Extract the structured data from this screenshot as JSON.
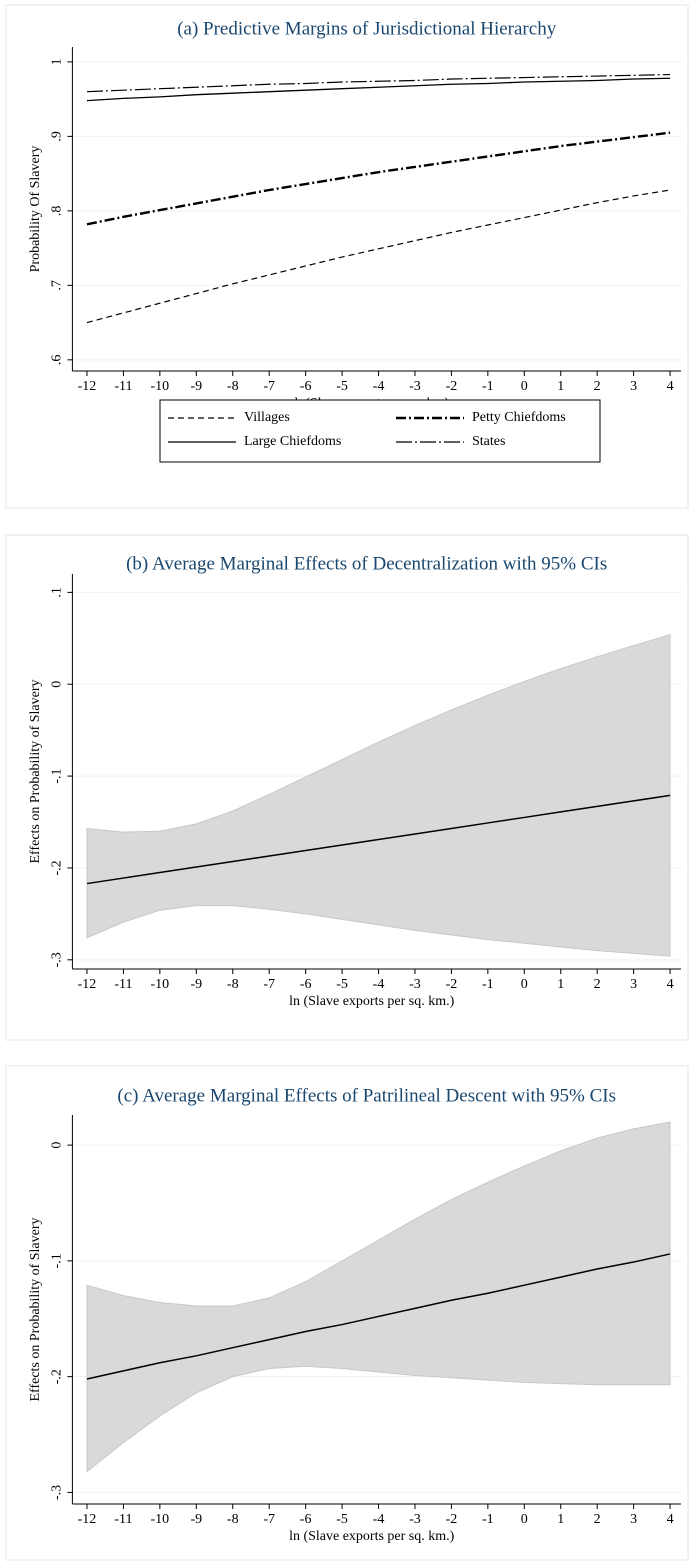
{
  "chart_data": [
    {
      "type": "line",
      "title": "(a) Predictive Margins of Jurisdictional Hierarchy",
      "x_label": "ln(Slave exports per sq km)",
      "y_label": "Probability Of Slavery",
      "x": [
        -12,
        -11,
        -10,
        -9,
        -8,
        -7,
        -6,
        -5,
        -4,
        -3,
        -2,
        -1,
        0,
        1,
        2,
        3,
        4
      ],
      "series": [
        {
          "name": "Villages",
          "color": "#000000",
          "style": "dashed",
          "values": [
            0.65,
            0.663,
            0.676,
            0.689,
            0.702,
            0.714,
            0.726,
            0.738,
            0.749,
            0.76,
            0.771,
            0.781,
            0.791,
            0.801,
            0.811,
            0.82,
            0.828
          ]
        },
        {
          "name": "Petty Chiefdoms",
          "color": "#000000",
          "style": "dashdot",
          "values": [
            0.782,
            0.792,
            0.801,
            0.81,
            0.819,
            0.828,
            0.836,
            0.844,
            0.852,
            0.859,
            0.866,
            0.873,
            0.88,
            0.887,
            0.893,
            0.899,
            0.905
          ]
        },
        {
          "name": "Large Chiefdoms",
          "color": "#000000",
          "style": "solid",
          "values": [
            0.948,
            0.951,
            0.953,
            0.956,
            0.958,
            0.96,
            0.962,
            0.964,
            0.966,
            0.968,
            0.97,
            0.971,
            0.973,
            0.974,
            0.975,
            0.977,
            0.978
          ]
        },
        {
          "name": "States",
          "color": "#000000",
          "style": "longdashdot",
          "values": [
            0.96,
            0.962,
            0.964,
            0.966,
            0.968,
            0.97,
            0.971,
            0.973,
            0.974,
            0.975,
            0.977,
            0.978,
            0.979,
            0.98,
            0.981,
            0.982,
            0.983
          ]
        }
      ],
      "xlim": [
        -12.4,
        4.3
      ],
      "xticks": [
        -12,
        -11,
        -10,
        -9,
        -8,
        -7,
        -6,
        -5,
        -4,
        -3,
        -2,
        -1,
        0,
        1,
        2,
        3,
        4
      ],
      "ylim": [
        0.585,
        1.02
      ],
      "yticks": [
        {
          "value": 0.6,
          "label": ".6"
        },
        {
          "value": 0.7,
          "label": ".7"
        },
        {
          "value": 0.8,
          "label": ".8"
        },
        {
          "value": 0.9,
          "label": ".9"
        },
        1
      ],
      "grid": true,
      "legend": "bottom"
    },
    {
      "type": "band",
      "title": "(b) Average Marginal Effects of Decentralization with 95% CIs",
      "x_label": "ln (Slave exports per sq. km.)",
      "y_label": "Effects on Probability of Slavery",
      "x": [
        -12,
        -11,
        -10,
        -9,
        -8,
        -7,
        -6,
        -5,
        -4,
        -3,
        -2,
        -1,
        0,
        1,
        2,
        3,
        4
      ],
      "values": [
        -0.217,
        -0.211,
        -0.205,
        -0.199,
        -0.193,
        -0.187,
        -0.181,
        -0.175,
        -0.169,
        -0.163,
        -0.157,
        -0.151,
        -0.145,
        -0.139,
        -0.133,
        -0.127,
        -0.121
      ],
      "upper": [
        -0.157,
        -0.161,
        -0.16,
        -0.152,
        -0.138,
        -0.12,
        -0.101,
        -0.082,
        -0.063,
        -0.045,
        -0.028,
        -0.012,
        0.003,
        0.017,
        0.03,
        0.042,
        0.054
      ],
      "lower": [
        -0.276,
        -0.259,
        -0.246,
        -0.241,
        -0.241,
        -0.245,
        -0.25,
        -0.256,
        -0.262,
        -0.268,
        -0.273,
        -0.278,
        -0.282,
        -0.286,
        -0.29,
        -0.293,
        -0.296
      ],
      "color": "#000000",
      "band_color": "#d9d9d9",
      "xlim": [
        -12.4,
        4.3
      ],
      "xticks": [
        -12,
        -11,
        -10,
        -9,
        -8,
        -7,
        -6,
        -5,
        -4,
        -3,
        -2,
        -1,
        0,
        1,
        2,
        3,
        4
      ],
      "ylim": [
        -0.31,
        0.12
      ],
      "yticks": [
        {
          "value": -0.3,
          "label": "-.3"
        },
        {
          "value": -0.2,
          "label": "-.2"
        },
        {
          "value": -0.1,
          "label": "-.1"
        },
        0,
        {
          "value": 0.1,
          "label": ".1"
        }
      ],
      "grid": true
    },
    {
      "type": "band",
      "title": "(c) Average Marginal Effects of Patrilineal Descent with 95% CIs",
      "x_label": "ln (Slave exports per sq. km.)",
      "y_label": "Effects on Probability of Slavery",
      "x": [
        -12,
        -11,
        -10,
        -9,
        -8,
        -7,
        -6,
        -5,
        -4,
        -3,
        -2,
        -1,
        0,
        1,
        2,
        3,
        4
      ],
      "values": [
        -0.202,
        -0.195,
        -0.188,
        -0.182,
        -0.175,
        -0.168,
        -0.161,
        -0.155,
        -0.148,
        -0.141,
        -0.134,
        -0.128,
        -0.121,
        -0.114,
        -0.107,
        -0.101,
        -0.094
      ],
      "upper": [
        -0.121,
        -0.13,
        -0.136,
        -0.139,
        -0.139,
        -0.132,
        -0.118,
        -0.1,
        -0.082,
        -0.064,
        -0.047,
        -0.032,
        -0.018,
        -0.005,
        0.006,
        0.014,
        0.02
      ],
      "lower": [
        -0.282,
        -0.257,
        -0.234,
        -0.214,
        -0.2,
        -0.193,
        -0.191,
        -0.193,
        -0.196,
        -0.199,
        -0.201,
        -0.203,
        -0.205,
        -0.206,
        -0.207,
        -0.207,
        -0.207
      ],
      "color": "#000000",
      "band_color": "#d9d9d9",
      "xlim": [
        -12.4,
        4.3
      ],
      "xticks": [
        -12,
        -11,
        -10,
        -9,
        -8,
        -7,
        -6,
        -5,
        -4,
        -3,
        -2,
        -1,
        0,
        1,
        2,
        3,
        4
      ],
      "ylim": [
        -0.31,
        0.026
      ],
      "yticks": [
        {
          "value": -0.3,
          "label": "-.3"
        },
        {
          "value": -0.2,
          "label": "-.2"
        },
        {
          "value": -0.1,
          "label": "-.1"
        },
        0
      ],
      "grid": true
    }
  ]
}
